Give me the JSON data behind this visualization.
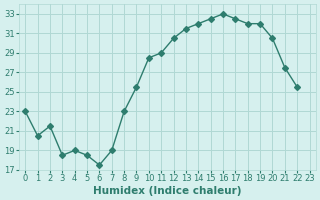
{
  "x": [
    0,
    1,
    2,
    3,
    4,
    5,
    6,
    7,
    8,
    9,
    10,
    11,
    12,
    13,
    14,
    15,
    16,
    17,
    18,
    19,
    20,
    21,
    22
  ],
  "y": [
    23,
    20.5,
    21.5,
    18.5,
    19,
    18.5,
    17.5,
    19,
    23,
    25.5,
    28.5,
    29,
    30.5,
    31.5,
    32,
    32.5,
    33,
    32.5,
    32,
    32,
    30.5,
    27.5,
    25.5
  ],
  "line_color": "#2e7d6e",
  "marker": "D",
  "marker_size": 3,
  "bg_color": "#d6f0ee",
  "grid_color": "#b0d8d4",
  "xlabel": "Humidex (Indice chaleur)",
  "xlim": [
    -0.5,
    23.5
  ],
  "ylim": [
    17,
    34
  ],
  "yticks": [
    17,
    19,
    21,
    23,
    25,
    27,
    29,
    31,
    33
  ],
  "xtick_positions": [
    0,
    1,
    2,
    3,
    4,
    5,
    6,
    7,
    8,
    9,
    10,
    11,
    12,
    13,
    14,
    15,
    16,
    17,
    18,
    19,
    20,
    21,
    22,
    23
  ],
  "xtick_labels": [
    "0",
    "1",
    "2",
    "3",
    "4",
    "5",
    "6",
    "7",
    "8",
    "9",
    "10",
    "11",
    "12",
    "13",
    "14",
    "15",
    "16",
    "17",
    "18",
    "19",
    "20",
    "21",
    "22",
    "23"
  ],
  "label_color": "#2e7d6e",
  "tick_fontsize": 6,
  "xlabel_fontsize": 7.5
}
